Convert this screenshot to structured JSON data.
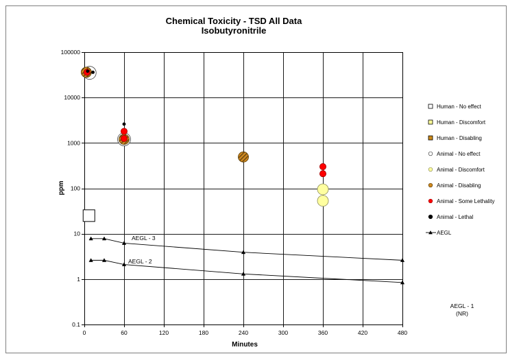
{
  "chart_data": {
    "type": "scatter",
    "title": "Chemical Toxicity - TSD All Data",
    "subtitle": "Isobutyronitrile",
    "xlabel": "Minutes",
    "ylabel": "ppm",
    "xlim": [
      0,
      480
    ],
    "ylim": [
      0.1,
      100000
    ],
    "yscale": "log",
    "x_ticks": [
      0,
      60,
      120,
      180,
      240,
      300,
      360,
      420,
      480
    ],
    "y_ticks": [
      0.1,
      1,
      10,
      100,
      1000,
      10000,
      100000
    ],
    "grid": true,
    "legend_position": "right",
    "series": [
      {
        "name": "Human - No effect",
        "marker": "square",
        "color": "#ffffff",
        "edge_color": "#000000",
        "points": [
          {
            "x": 7,
            "y": 25
          }
        ]
      },
      {
        "name": "Human - Discomfort",
        "marker": "square",
        "color": "#ffff99",
        "edge_color": "#000000",
        "points": []
      },
      {
        "name": "Human - Disabling",
        "marker": "square",
        "color": "#cc8a1a",
        "edge_color": "#000000",
        "points": []
      },
      {
        "name": "Animal - No effect",
        "marker": "circle",
        "color": "#ffffff",
        "edge_color": "#404040",
        "points": [
          {
            "x": 8,
            "y": 35000
          },
          {
            "x": 60,
            "y": 1200
          }
        ]
      },
      {
        "name": "Animal - Discomfort",
        "marker": "circle",
        "color": "#ffffa0",
        "edge_color": "#8c8c5a",
        "points": [
          {
            "x": 360,
            "y": 95
          },
          {
            "x": 360,
            "y": 53
          }
        ]
      },
      {
        "name": "Animal - Disabling",
        "marker": "hatched-circle",
        "color": "#d08a20",
        "edge_color": "#5a3a00",
        "points": [
          {
            "x": 3,
            "y": 36000
          },
          {
            "x": 60,
            "y": 1200
          },
          {
            "x": 240,
            "y": 490
          }
        ]
      },
      {
        "name": "Animal - Some Lethality",
        "marker": "circle",
        "color": "#ff0000",
        "edge_color": "#a00000",
        "points": [
          {
            "x": 4,
            "y": 36000
          },
          {
            "x": 60,
            "y": 1800
          },
          {
            "x": 60,
            "y": 1250
          },
          {
            "x": 360,
            "y": 300
          },
          {
            "x": 360,
            "y": 210
          }
        ]
      },
      {
        "name": "Animal - Lethal",
        "marker": "dot",
        "color": "#000000",
        "edge_color": "#000000",
        "points": [
          {
            "x": 5,
            "y": 38000
          },
          {
            "x": 13,
            "y": 36000
          },
          {
            "x": 60,
            "y": 2600
          }
        ]
      },
      {
        "name": "AEGL",
        "marker": "triangle",
        "color": "#000000",
        "line": true,
        "lines": [
          {
            "label": "AEGL - 3",
            "points": [
              {
                "x": 10,
                "y": 7.8
              },
              {
                "x": 30,
                "y": 7.8
              },
              {
                "x": 60,
                "y": 6.2
              },
              {
                "x": 240,
                "y": 3.9
              },
              {
                "x": 480,
                "y": 2.6
              }
            ]
          },
          {
            "label": "AEGL - 2",
            "points": [
              {
                "x": 10,
                "y": 2.6
              },
              {
                "x": 30,
                "y": 2.6
              },
              {
                "x": 60,
                "y": 2.1
              },
              {
                "x": 240,
                "y": 1.3
              },
              {
                "x": 480,
                "y": 0.84
              }
            ]
          }
        ]
      }
    ],
    "annotations": [
      {
        "text": "AEGL - 1"
      },
      {
        "text": "(NR)"
      }
    ]
  }
}
